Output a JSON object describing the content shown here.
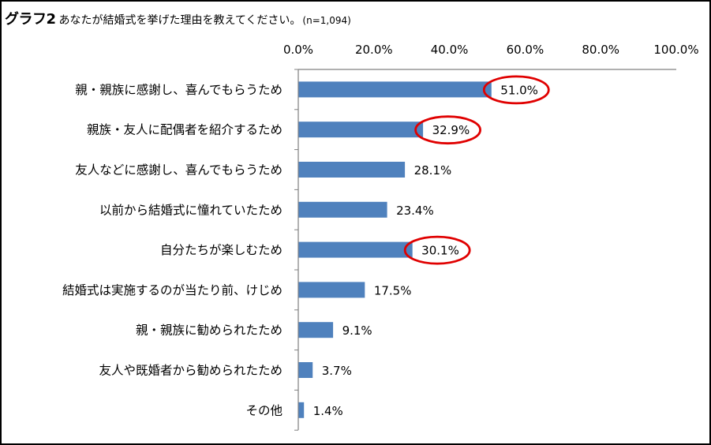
{
  "title": {
    "main": "グラフ2",
    "question": "あなたが結婚式を挙げた理由を教えてください。",
    "sample": "(n=1,094)"
  },
  "chart_data": {
    "type": "bar",
    "orientation": "horizontal",
    "categories": [
      "親・親族に感謝し、喜んでもらうため",
      "親族・友人に配偶者を紹介するため",
      "友人などに感謝し、喜んでもらうため",
      "以前から結婚式に憧れていたため",
      "自分たちが楽しむため",
      "結婚式は実施するのが当たり前、けじめ",
      "親・親族に勧められたため",
      "友人や既婚者から勧められたため",
      "その他"
    ],
    "values": [
      51.0,
      32.9,
      28.1,
      23.4,
      30.1,
      17.5,
      9.1,
      3.7,
      1.4
    ],
    "value_labels": [
      "51.0%",
      "32.9%",
      "28.1%",
      "23.4%",
      "30.1%",
      "17.5%",
      "9.1%",
      "3.7%",
      "1.4%"
    ],
    "highlighted": [
      true,
      true,
      false,
      false,
      true,
      false,
      false,
      false,
      false
    ],
    "xticks": [
      "0.0%",
      "20.0%",
      "40.0%",
      "60.0%",
      "80.0%",
      "100.0%"
    ],
    "xlim": [
      0,
      100
    ],
    "axis_position": "top",
    "grid": false,
    "bar_color": "#4f81bd",
    "highlight_color": "#e00000"
  }
}
